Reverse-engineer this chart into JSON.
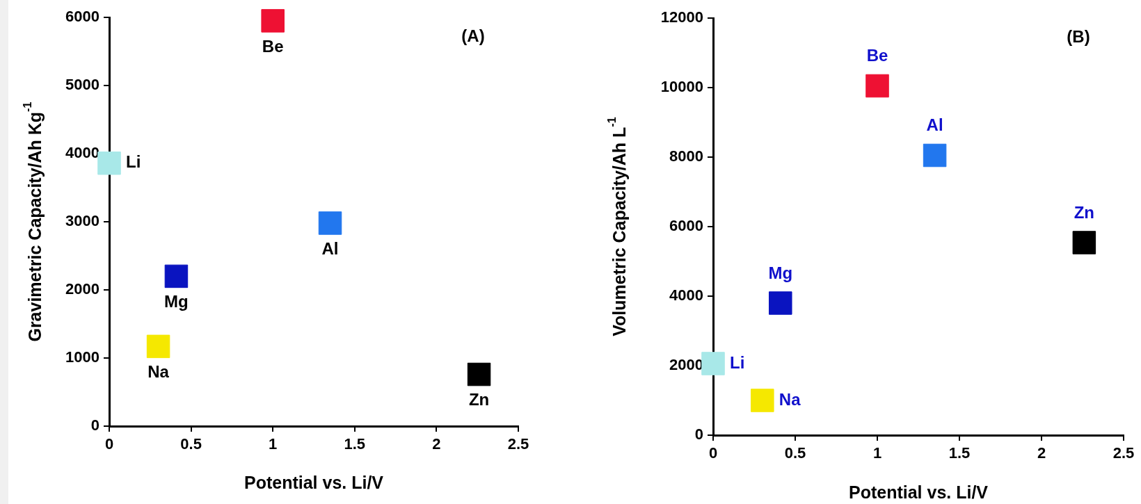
{
  "chart_data": [
    {
      "type": "scatter",
      "xlabel": "Potential vs. Li/V",
      "ylabel": "Gravimetric Capacity/Ah Kg$^{-1}$",
      "annotations": [
        "(A)"
      ],
      "xlim": [
        0,
        2.5
      ],
      "xticks": [
        0,
        0.5,
        1,
        1.5,
        2,
        2.5
      ],
      "ylim": [
        0,
        6000
      ],
      "yticks": [
        0,
        1000,
        2000,
        3000,
        4000,
        5000,
        6000
      ],
      "grid": false,
      "marker": "square",
      "series": [
        {
          "name": "Li",
          "color": "#a8e8e8",
          "x": [
            0
          ],
          "values": [
            3860
          ]
        },
        {
          "name": "Be",
          "color": "#ee1133",
          "x": [
            1.0
          ],
          "values": [
            5950
          ]
        },
        {
          "name": "Al",
          "color": "#2277ee",
          "x": [
            1.35
          ],
          "values": [
            2980
          ]
        },
        {
          "name": "Mg",
          "color": "#0a14c0",
          "x": [
            0.41
          ],
          "values": [
            2200
          ]
        },
        {
          "name": "Na",
          "color": "#f5e800",
          "x": [
            0.3
          ],
          "values": [
            1170
          ]
        },
        {
          "name": "Zn",
          "color": "#000000",
          "x": [
            2.26
          ],
          "values": [
            760
          ]
        }
      ]
    },
    {
      "type": "scatter",
      "xlabel": "Potential vs. Li/V",
      "ylabel": "Volumetric Capacity/Ah L$^{-1}$",
      "annotations": [
        "(B)"
      ],
      "xlim": [
        0,
        2.5
      ],
      "xticks": [
        0,
        0.5,
        1,
        1.5,
        2,
        2.5
      ],
      "ylim": [
        0,
        12000
      ],
      "yticks": [
        0,
        2000,
        4000,
        6000,
        8000,
        10000,
        12000
      ],
      "grid": false,
      "marker": "square",
      "series": [
        {
          "name": "Li",
          "color": "#a8e8e8",
          "x": [
            0
          ],
          "values": [
            2060
          ]
        },
        {
          "name": "Be",
          "color": "#ee1133",
          "x": [
            1.0
          ],
          "values": [
            10050
          ]
        },
        {
          "name": "Al",
          "color": "#2277ee",
          "x": [
            1.35
          ],
          "values": [
            8050
          ]
        },
        {
          "name": "Mg",
          "color": "#0a14c0",
          "x": [
            0.41
          ],
          "values": [
            3800
          ]
        },
        {
          "name": "Na",
          "color": "#f5e800",
          "x": [
            0.3
          ],
          "values": [
            1000
          ]
        },
        {
          "name": "Zn",
          "color": "#000000",
          "x": [
            2.26
          ],
          "values": [
            5540
          ]
        }
      ]
    }
  ]
}
